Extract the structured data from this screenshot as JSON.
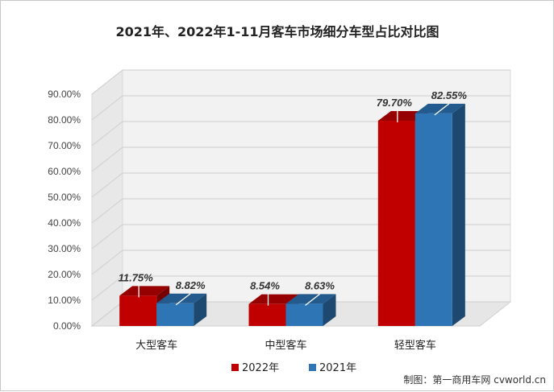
{
  "chart_data": {
    "type": "bar",
    "title": "2021年、2022年1-11月客车市场细分车型占比对比图",
    "categories": [
      "大型客车",
      "中型客车",
      "轻型客车"
    ],
    "series": [
      {
        "name": "2022年",
        "values": [
          11.75,
          8.54,
          79.7
        ],
        "labels": [
          "11.75%",
          "8.54%",
          "79.70%"
        ],
        "color": "#c00000"
      },
      {
        "name": "2021年",
        "values": [
          8.82,
          8.63,
          82.55
        ],
        "labels": [
          "8.82%",
          "8.63%",
          "82.55%"
        ],
        "color": "#2e75b6"
      }
    ],
    "y_ticks": [
      "0.00%",
      "10.00%",
      "20.00%",
      "30.00%",
      "40.00%",
      "50.00%",
      "60.00%",
      "70.00%",
      "80.00%",
      "90.00%"
    ],
    "ylim": [
      0,
      90
    ],
    "grid": true,
    "legend_position": "bottom"
  },
  "credit": "制图：第一商用车网 cvworld.cn"
}
